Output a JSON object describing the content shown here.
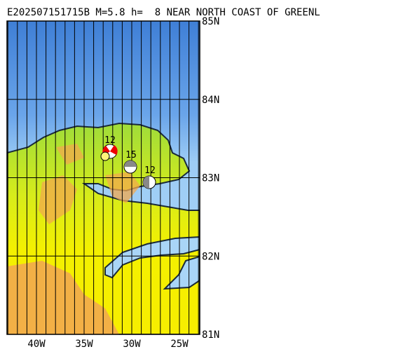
{
  "header": {
    "title": "E202507151715B M=5.8 h=  8 NEAR NORTH COAST OF GREENL"
  },
  "map": {
    "lat_labels": [
      "85N",
      "84N",
      "83N",
      "82N",
      "81N"
    ],
    "lon_labels": [
      "40W",
      "35W",
      "30W",
      "25W"
    ],
    "events": [
      {
        "label": "12"
      },
      {
        "label": "15"
      },
      {
        "label": "12"
      }
    ]
  }
}
